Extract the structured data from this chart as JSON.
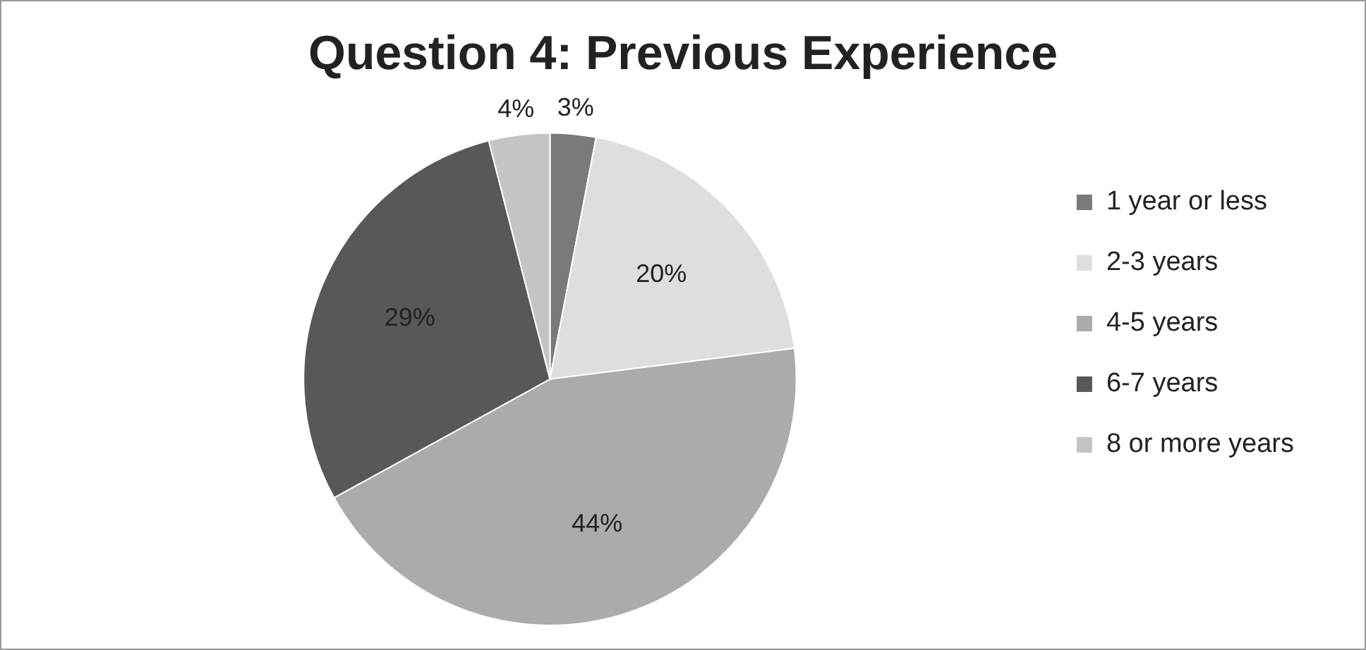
{
  "chart_data": {
    "type": "pie",
    "title": "Question 4: Previous Experience",
    "categories": [
      "1 year or less",
      "2-3 years",
      "4-5 years",
      "6-7 years",
      "8 or more years"
    ],
    "values": [
      3,
      20,
      44,
      29,
      4
    ],
    "value_labels": [
      "3%",
      "20%",
      "44%",
      "29%",
      "4%"
    ],
    "colors": [
      "#7a7a7a",
      "#dedede",
      "#ababab",
      "#585858",
      "#c4c4c4"
    ],
    "legend": "right"
  }
}
